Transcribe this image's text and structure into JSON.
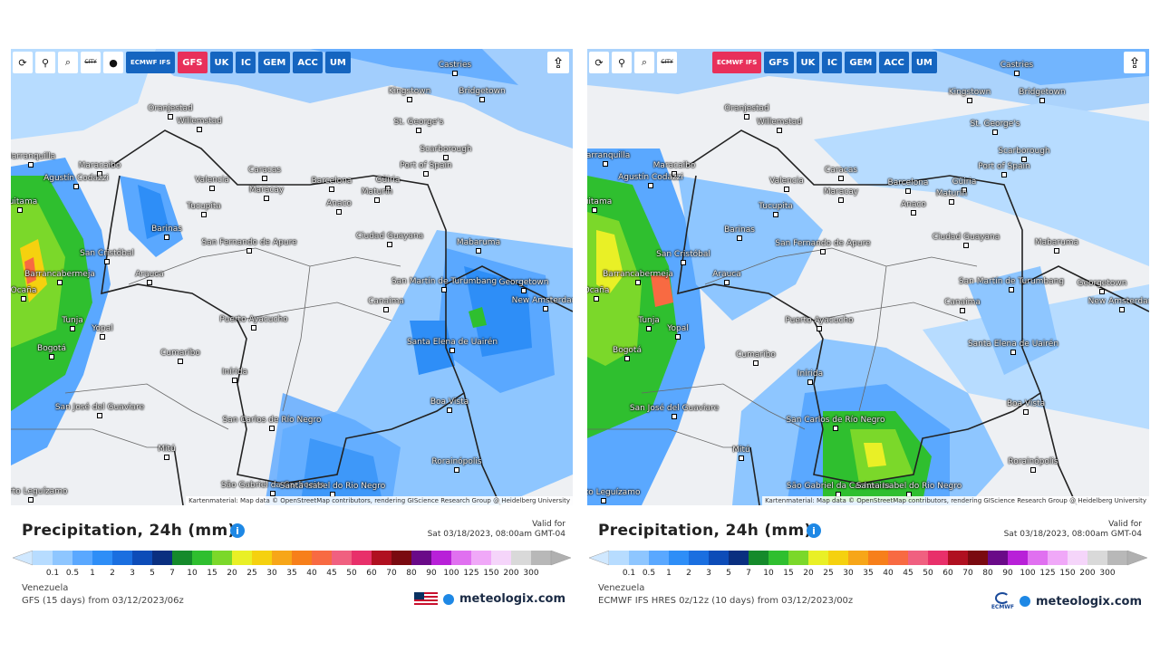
{
  "shared": {
    "toolbar": {
      "refresh_icon": "refresh-icon",
      "location_icon": "location-pin-icon",
      "zoom_icon": "zoom-icon",
      "city_label": "CITY",
      "dot_icon": "black-dot-icon",
      "models": [
        "ECMWF IFS",
        "GFS",
        "UK",
        "IC",
        "GEM",
        "ACC",
        "UM"
      ],
      "share_icon": "share-icon"
    },
    "cities": [
      {
        "name": "Castries"
      },
      {
        "name": "Kingstown"
      },
      {
        "name": "Bridgetown"
      },
      {
        "name": "Oranjestad"
      },
      {
        "name": "Willemstad"
      },
      {
        "name": "St. George's"
      },
      {
        "name": "Scarborough"
      },
      {
        "name": "Port of Spain"
      },
      {
        "name": "Barranquilla"
      },
      {
        "name": "Maracaibo"
      },
      {
        "name": "Caracas"
      },
      {
        "name": "Valencia"
      },
      {
        "name": "Maracay"
      },
      {
        "name": "Barcelona"
      },
      {
        "name": "Güiria"
      },
      {
        "name": "Maturín"
      },
      {
        "name": "Agustín Codazzi"
      },
      {
        "name": "Anaco"
      },
      {
        "name": "Tucupita"
      },
      {
        "name": "Barinas"
      },
      {
        "name": "Ciudad Guayana"
      },
      {
        "name": "San Fernando de Apure"
      },
      {
        "name": "Mabaruma"
      },
      {
        "name": "San Cristóbal"
      },
      {
        "name": "Barrancabermeja"
      },
      {
        "name": "Arauca"
      },
      {
        "name": "San Martín de Turumbang"
      },
      {
        "name": "Georgetown"
      },
      {
        "name": "New Amsterdam"
      },
      {
        "name": "Canaima"
      },
      {
        "name": "Tunja"
      },
      {
        "name": "Yopal"
      },
      {
        "name": "Puerto Ayacucho"
      },
      {
        "name": "Santa Elena de Uairén"
      },
      {
        "name": "Bogotá"
      },
      {
        "name": "Cumaribo"
      },
      {
        "name": "Inírida"
      },
      {
        "name": "Boa Vista"
      },
      {
        "name": "San José del Guaviare"
      },
      {
        "name": "San Carlos de Río Negro"
      },
      {
        "name": "Mitú"
      },
      {
        "name": "Rorainópolis"
      },
      {
        "name": "São Gabriel da Cachoeira"
      },
      {
        "name": "Santa Isabel do Rio Negro"
      },
      {
        "name": "Puerto Leguízamo"
      },
      {
        "name": "Duitama"
      },
      {
        "name": "Ocaña"
      }
    ],
    "attribution": "Kartenmaterial: Map data © OpenStreetMap contributors, rendering GIScience Research Group @ Heidelberg University",
    "legend_title": "Precipitation, 24h (mm)",
    "info_icon": "info-icon",
    "valid_label": "Valid for",
    "valid_time": "Sat 03/18/2023, 08:00am GMT-04",
    "region": "Venezuela",
    "ticks": [
      "0.1",
      "0.5",
      "1",
      "2",
      "3",
      "5",
      "7",
      "10",
      "15",
      "20",
      "25",
      "30",
      "35",
      "40",
      "45",
      "50",
      "60",
      "70",
      "80",
      "90",
      "100",
      "125",
      "150",
      "200",
      "300"
    ],
    "scale_colors": [
      "#b7dcff",
      "#8ec6ff",
      "#5aa8ff",
      "#2e8ef7",
      "#1a6fe0",
      "#0d4cb8",
      "#0a2f80",
      "#158a2b",
      "#2fbf2f",
      "#7bd82a",
      "#e9f026",
      "#f5d10f",
      "#f7a618",
      "#f77f1a",
      "#f86a42",
      "#f06080",
      "#e8306a",
      "#b01020",
      "#7a0a10",
      "#6a0a88",
      "#b820d8",
      "#e070f0",
      "#f0a8f8",
      "#f5d5fa",
      "#d9d9d9",
      "#b8b8b8"
    ],
    "brand": "meteologix.com"
  },
  "left": {
    "active_model": "GFS",
    "source": "GFS (15 days) from 03/12/2023/06z",
    "flag_icon": "us-flag-icon"
  },
  "right": {
    "active_model": "ECMWF IFS",
    "source": "ECMWF IFS HRES 0z/12z (10 days) from 03/12/2023/00z",
    "ecmwf_logo": "ECMWF"
  }
}
